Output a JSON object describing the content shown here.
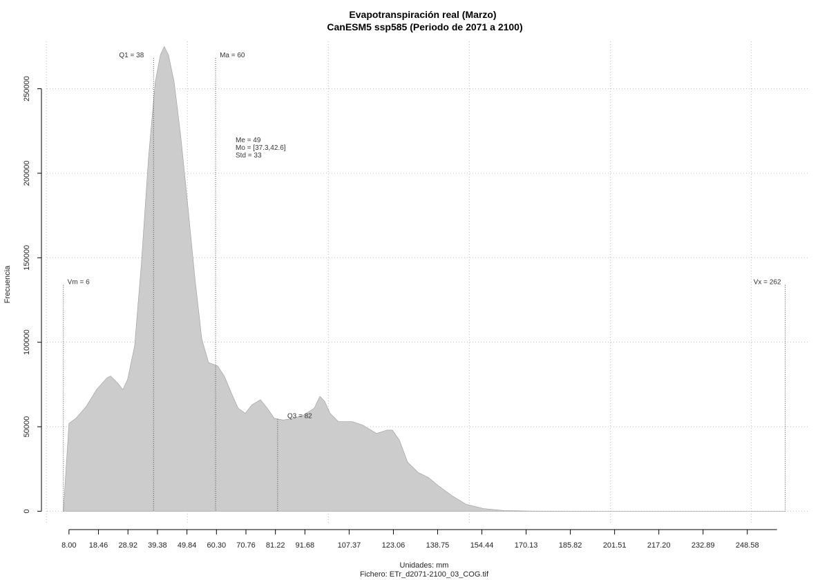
{
  "chart_data": {
    "type": "area",
    "title": "Evapotranspiración real (Marzo)",
    "subtitle": "CanESM5 ssp585 (Periodo de 2071 a 2100)",
    "x_label": "Unidades: mm",
    "caption": "Fichero: ETr_d2071-2100_03_COG.tif",
    "y_label": "Frecuencia",
    "color": "#cccccc",
    "x": [
      6,
      8,
      10.5,
      14.1,
      17.8,
      21.5,
      22.8,
      25.2,
      27.1,
      28.8,
      31.3,
      33.7,
      36.2,
      38.6,
      40.4,
      41.8,
      43.3,
      45.3,
      47.7,
      50.2,
      52.6,
      55.1,
      57.5,
      60.7,
      63.1,
      65.6,
      68,
      70.5,
      72.9,
      75.9,
      78.3,
      80.8,
      84,
      87.7,
      91.3,
      95,
      97,
      98.7,
      100.6,
      103.6,
      108.5,
      112.2,
      117.1,
      120.7,
      122.7,
      125.2,
      128.1,
      131.8,
      135.5,
      139.1,
      144,
      149,
      155,
      162.4,
      172,
      204,
      262
    ],
    "values": [
      0,
      52000,
      55000,
      62000,
      72000,
      79000,
      80000,
      76000,
      72000,
      78000,
      98000,
      147000,
      209000,
      254000,
      270000,
      275000,
      270000,
      254000,
      221000,
      180000,
      139000,
      102000,
      88000,
      86000,
      80000,
      70000,
      61000,
      58000,
      63000,
      66000,
      61000,
      55000,
      54000,
      55000,
      57000,
      61000,
      68000,
      65000,
      58000,
      53000,
      53000,
      51000,
      46000,
      48000,
      48000,
      42000,
      29000,
      23000,
      20000,
      15000,
      9000,
      4000,
      1600,
      400,
      100,
      20,
      0
    ],
    "xlim": [
      0.2,
      270.2
    ],
    "ylim": [
      -8000,
      278000
    ],
    "xticks": [
      {
        "value": 8,
        "label": "8.00"
      },
      18.46,
      28.92,
      39.38,
      49.84,
      {
        "value": 60.3,
        "label": "60.30"
      },
      70.76,
      81.22,
      91.68,
      107.37,
      123.06,
      138.75,
      154.44,
      170.13,
      185.82,
      201.51,
      {
        "value": 217.2,
        "label": "217.20"
      },
      232.89,
      248.58
    ],
    "yticks": [
      0,
      50000,
      100000,
      150000,
      200000,
      250000
    ],
    "xgrid": [
      0,
      50,
      100,
      150,
      200,
      250
    ],
    "grid": true,
    "markers": [
      {
        "label": "Vm = 6",
        "value": 6
      },
      {
        "label": "Q1 = 38",
        "value": 38
      },
      {
        "label": "Ma = 60",
        "value": 60
      },
      {
        "label": "Q3 = 82",
        "value": 82
      },
      {
        "label": "Vx = 262",
        "value": 262
      }
    ],
    "stats": [
      "Me = 49",
      "Mo = [37.3,42.6]",
      "Std = 33"
    ]
  }
}
